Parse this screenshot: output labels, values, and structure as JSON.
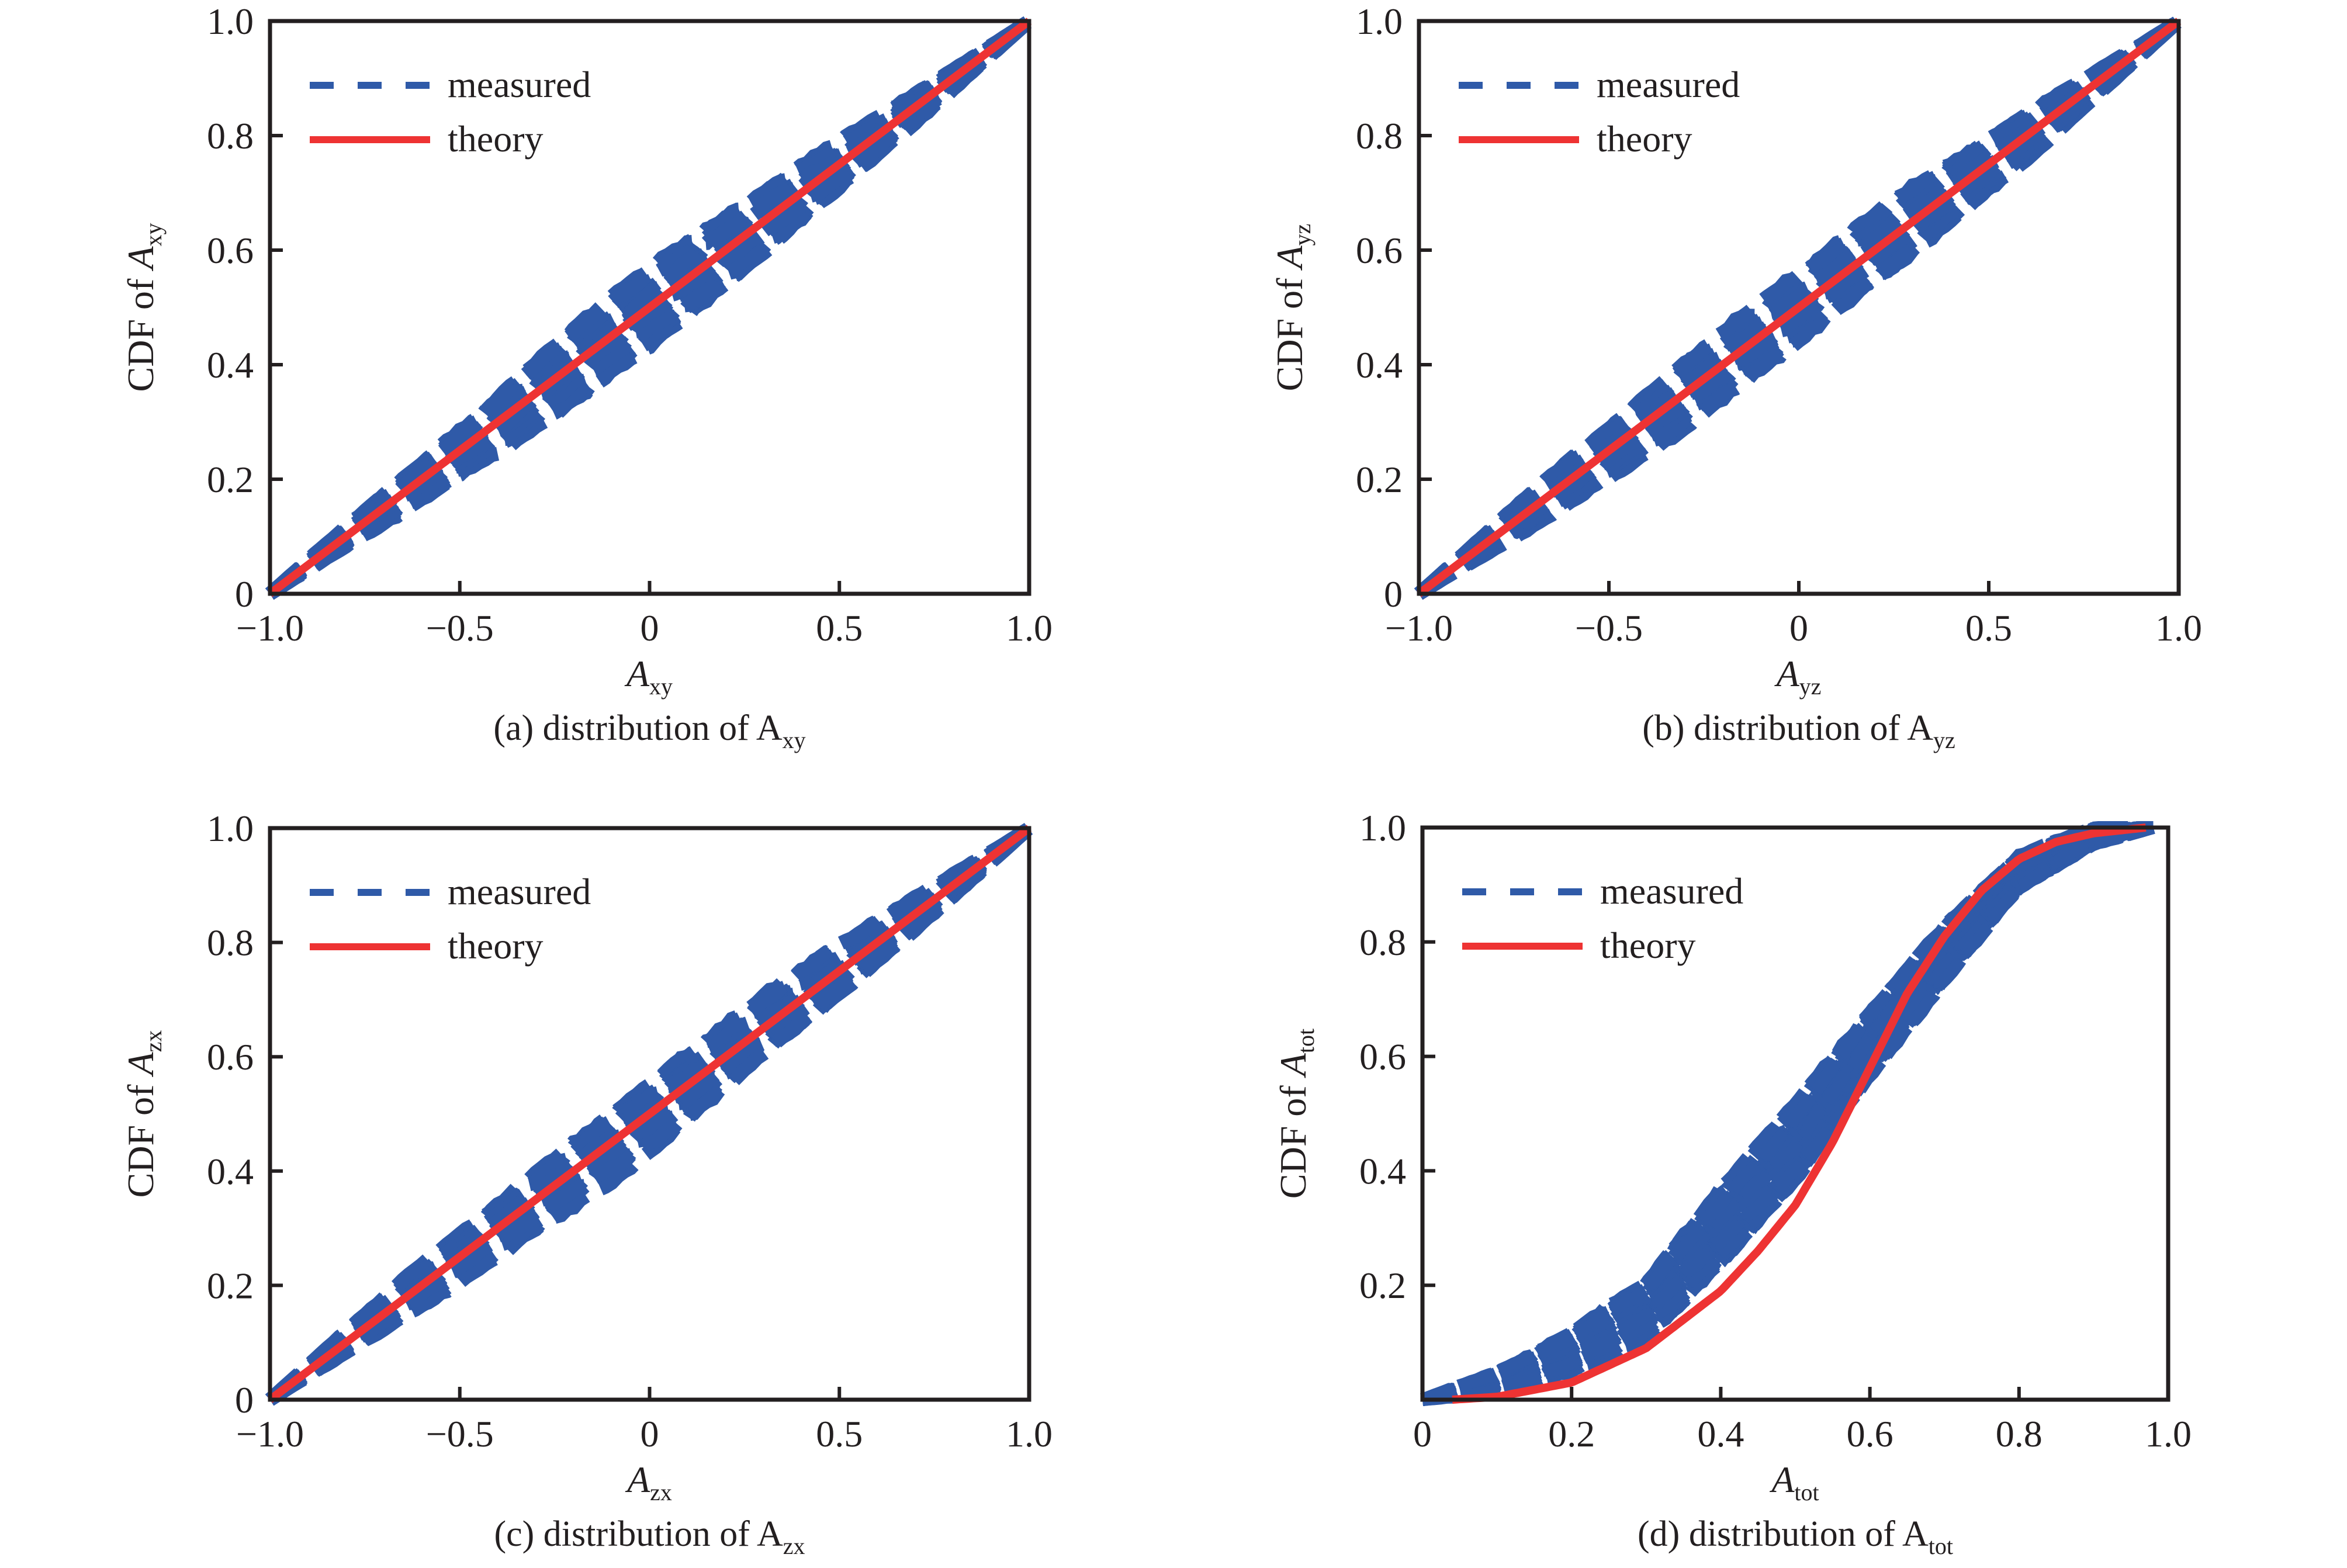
{
  "figure": {
    "colors": {
      "measured": "#2f5aa8",
      "theory": "#ee3333",
      "axis": "#231f20"
    }
  },
  "chart_data": [
    {
      "id": "a",
      "type": "line",
      "caption_prefix": "(a) distribution of ",
      "caption_var": "A",
      "caption_sub": "xy",
      "xlabel_var": "A",
      "xlabel_sub": "xy",
      "ylabel_prefix": "CDF of ",
      "ylabel_var": "A",
      "ylabel_sub": "xy",
      "xlim": [
        -1.0,
        1.0
      ],
      "ylim": [
        0,
        1.0
      ],
      "xticks": [
        -1.0,
        -0.5,
        0,
        0.5,
        1.0
      ],
      "xtick_labels": [
        "−1.0",
        "−0.5",
        "0",
        "0.5",
        "1.0"
      ],
      "yticks": [
        0,
        0.2,
        0.4,
        0.6,
        0.8,
        1.0
      ],
      "ytick_labels": [
        "0",
        "0.2",
        "0.4",
        "0.6",
        "0.8",
        "1.0"
      ],
      "legend": {
        "position": "top-left",
        "entries": [
          "measured",
          "theory"
        ]
      },
      "series": [
        {
          "name": "theory",
          "style": "solid",
          "x": [
            -1.0,
            1.0
          ],
          "y": [
            0,
            1.0
          ]
        },
        {
          "name": "measured",
          "style": "dashed",
          "description": "ensemble of many measured CDF curves scattered around theory",
          "x": [
            -1.0,
            -0.8,
            -0.6,
            -0.4,
            -0.2,
            0,
            0.2,
            0.4,
            0.6,
            0.8,
            1.0
          ],
          "y_center": [
            0,
            0.1,
            0.2,
            0.3,
            0.4,
            0.5,
            0.6,
            0.7,
            0.8,
            0.9,
            1.0
          ],
          "spread": 0.05
        }
      ]
    },
    {
      "id": "b",
      "type": "line",
      "caption_prefix": "(b) distribution of ",
      "caption_var": "A",
      "caption_sub": "yz",
      "xlabel_var": "A",
      "xlabel_sub": "yz",
      "ylabel_prefix": "CDF of ",
      "ylabel_var": "A",
      "ylabel_sub": "yz",
      "xlim": [
        -1.0,
        1.0
      ],
      "ylim": [
        0,
        1.0
      ],
      "xticks": [
        -1.0,
        -0.5,
        0,
        0.5,
        1.0
      ],
      "xtick_labels": [
        "−1.0",
        "−0.5",
        "0",
        "0.5",
        "1.0"
      ],
      "yticks": [
        0,
        0.2,
        0.4,
        0.6,
        0.8,
        1.0
      ],
      "ytick_labels": [
        "0",
        "0.2",
        "0.4",
        "0.6",
        "0.8",
        "1.0"
      ],
      "legend": {
        "position": "top-left",
        "entries": [
          "measured",
          "theory"
        ]
      },
      "series": [
        {
          "name": "theory",
          "style": "solid",
          "x": [
            -1.0,
            1.0
          ],
          "y": [
            0,
            1.0
          ]
        },
        {
          "name": "measured",
          "style": "dashed",
          "description": "ensemble of many measured CDF curves scattered around theory",
          "x": [
            -1.0,
            -0.8,
            -0.6,
            -0.4,
            -0.2,
            0,
            0.2,
            0.4,
            0.6,
            0.8,
            1.0
          ],
          "y_center": [
            0,
            0.1,
            0.2,
            0.3,
            0.4,
            0.5,
            0.6,
            0.7,
            0.8,
            0.9,
            1.0
          ],
          "spread": 0.05
        }
      ]
    },
    {
      "id": "c",
      "type": "line",
      "caption_prefix": "(c) distribution of ",
      "caption_var": "A",
      "caption_sub": "zx",
      "xlabel_var": "A",
      "xlabel_sub": "zx",
      "ylabel_prefix": "CDF of ",
      "ylabel_var": "A",
      "ylabel_sub": "zx",
      "xlim": [
        -1.0,
        1.0
      ],
      "ylim": [
        0,
        1.0
      ],
      "xticks": [
        -1.0,
        -0.5,
        0,
        0.5,
        1.0
      ],
      "xtick_labels": [
        "−1.0",
        "−0.5",
        "0",
        "0.5",
        "1.0"
      ],
      "yticks": [
        0,
        0.2,
        0.4,
        0.6,
        0.8,
        1.0
      ],
      "ytick_labels": [
        "0",
        "0.2",
        "0.4",
        "0.6",
        "0.8",
        "1.0"
      ],
      "legend": {
        "position": "top-left",
        "entries": [
          "measured",
          "theory"
        ]
      },
      "series": [
        {
          "name": "theory",
          "style": "solid",
          "x": [
            -1.0,
            1.0
          ],
          "y": [
            0,
            1.0
          ]
        },
        {
          "name": "measured",
          "style": "dashed",
          "description": "ensemble of many measured CDF curves scattered around theory",
          "x": [
            -1.0,
            -0.8,
            -0.6,
            -0.4,
            -0.2,
            0,
            0.2,
            0.4,
            0.6,
            0.8,
            1.0
          ],
          "y_center": [
            0,
            0.1,
            0.2,
            0.3,
            0.4,
            0.5,
            0.6,
            0.7,
            0.8,
            0.9,
            1.0
          ],
          "spread": 0.04
        }
      ]
    },
    {
      "id": "d",
      "type": "line",
      "caption_prefix": "(d) distribution of ",
      "caption_var": "A",
      "caption_sub": "tot",
      "xlabel_var": "A",
      "xlabel_sub": "tot",
      "ylabel_prefix": "CDF of ",
      "ylabel_var": "A",
      "ylabel_sub": "tot",
      "xlim": [
        0,
        1.0
      ],
      "ylim": [
        0,
        1.0
      ],
      "xticks": [
        0,
        0.2,
        0.4,
        0.6,
        0.8,
        1.0
      ],
      "xtick_labels": [
        "0",
        "0.2",
        "0.4",
        "0.6",
        "0.8",
        "1.0"
      ],
      "yticks": [
        0.2,
        0.4,
        0.6,
        0.8,
        1.0
      ],
      "ytick_labels": [
        "0.2",
        "0.4",
        "0.6",
        "0.8",
        "1.0"
      ],
      "legend": {
        "position": "top-left",
        "entries": [
          "measured",
          "theory"
        ]
      },
      "series": [
        {
          "name": "theory",
          "style": "solid",
          "x": [
            0.04,
            0.1,
            0.2,
            0.3,
            0.4,
            0.45,
            0.5,
            0.55,
            0.6,
            0.65,
            0.7,
            0.75,
            0.8,
            0.85,
            0.9,
            0.97
          ],
          "y": [
            0,
            0.005,
            0.03,
            0.09,
            0.19,
            0.26,
            0.34,
            0.45,
            0.58,
            0.71,
            0.81,
            0.89,
            0.945,
            0.975,
            0.99,
            1.0
          ]
        },
        {
          "name": "measured",
          "style": "dashed",
          "description": "ensemble of many measured CDF curves forming a dense band",
          "x": [
            0.0,
            0.1,
            0.2,
            0.3,
            0.4,
            0.5,
            0.6,
            0.7,
            0.8,
            0.9,
            0.98
          ],
          "y_center": [
            0,
            0.03,
            0.08,
            0.16,
            0.3,
            0.44,
            0.62,
            0.78,
            0.92,
            0.985,
            1.0
          ],
          "spread": 0.05
        }
      ]
    }
  ]
}
